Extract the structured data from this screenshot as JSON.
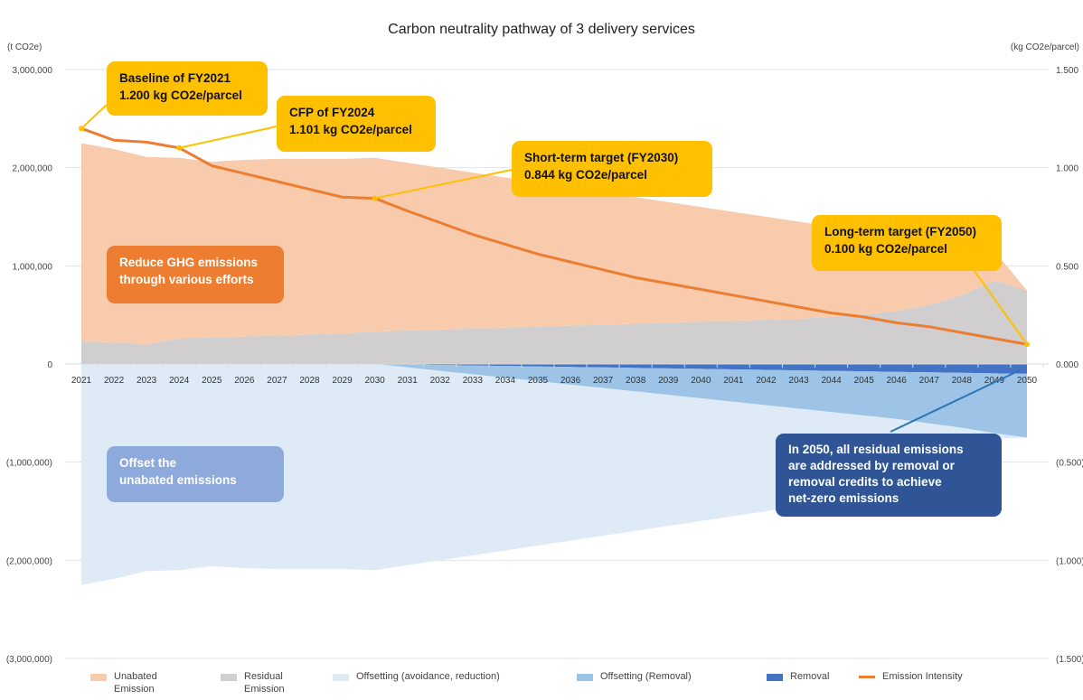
{
  "chart_data": {
    "type": "area",
    "title": "Carbon neutrality pathway of 3 delivery services",
    "ylabel_left": "(t CO2e)",
    "ylabel_right": "(kg CO2e/parcel)",
    "ylim_left": [
      -3000000,
      3000000
    ],
    "ylim_right": [
      -1.5,
      1.5
    ],
    "yticks_left": [
      "3,000,000",
      "2,000,000",
      "1,000,000",
      "0",
      "(1,000,000)",
      "(2,000,000)",
      "(3,000,000)"
    ],
    "yticks_right": [
      "1.500",
      "1.000",
      "0.500",
      "0.000",
      "(0.500)",
      "(1.000)",
      "(1.500)"
    ],
    "grid": true,
    "legend_position": "bottom",
    "x": [
      2021,
      2022,
      2023,
      2024,
      2025,
      2026,
      2027,
      2028,
      2029,
      2030,
      2031,
      2032,
      2033,
      2034,
      2035,
      2036,
      2037,
      2038,
      2039,
      2040,
      2041,
      2042,
      2043,
      2044,
      2045,
      2046,
      2047,
      2048,
      2049,
      2050
    ],
    "series": [
      {
        "name": "Unabated Emission",
        "color": "#F8CBAD",
        "stack": "positive",
        "values": [
          2020000,
          1970000,
          1910000,
          1840000,
          1790000,
          1800000,
          1800000,
          1790000,
          1780000,
          1770000,
          1710000,
          1650000,
          1590000,
          1530000,
          1470000,
          1410000,
          1350000,
          1290000,
          1230000,
          1170000,
          1110000,
          1050000,
          990000,
          920000,
          850000,
          760000,
          650000,
          500000,
          300000,
          0
        ]
      },
      {
        "name": "Residual Emission",
        "color": "#D0CECE",
        "stack": "positive",
        "values": [
          230000,
          220000,
          200000,
          260000,
          270000,
          280000,
          290000,
          300000,
          310000,
          330000,
          340000,
          350000,
          360000,
          370000,
          380000,
          390000,
          400000,
          410000,
          420000,
          430000,
          440000,
          450000,
          460000,
          480000,
          500000,
          540000,
          600000,
          700000,
          850000,
          750000
        ]
      },
      {
        "name": "Offsetting (avoidance, reduction)",
        "color": "#DEEBF7",
        "stack": "negative",
        "values": [
          -2250000,
          -2190000,
          -2110000,
          -2100000,
          -2060000,
          -2080000,
          -2090000,
          -2090000,
          -2090000,
          -2100000,
          -2015000,
          -1930000,
          -1845000,
          -1760000,
          -1675000,
          -1590000,
          -1505000,
          -1420000,
          -1335000,
          -1250000,
          -1165000,
          -1080000,
          -995000,
          -895000,
          -795000,
          -665000,
          -505000,
          -305000,
          -55000,
          0
        ]
      },
      {
        "name": "Offsetting (Removal)",
        "color": "#9DC3E6",
        "stack": "negative",
        "values": [
          0,
          0,
          0,
          0,
          0,
          0,
          0,
          0,
          0,
          0,
          -30000,
          -60000,
          -90000,
          -120000,
          -150000,
          -180000,
          -210000,
          -240000,
          -270000,
          -300000,
          -330000,
          -360000,
          -390000,
          -420000,
          -450000,
          -480000,
          -520000,
          -560000,
          -610000,
          -650000
        ]
      },
      {
        "name": "Removal",
        "color": "#4472C4",
        "stack": "negative",
        "values": [
          0,
          0,
          0,
          0,
          0,
          0,
          0,
          0,
          0,
          0,
          -5000,
          -10000,
          -15000,
          -20000,
          -25000,
          -30000,
          -35000,
          -40000,
          -45000,
          -50000,
          -55000,
          -60000,
          -65000,
          -70000,
          -75000,
          -80000,
          -85000,
          -90000,
          -95000,
          -100000
        ]
      },
      {
        "name": "Emission Intensity",
        "color": "#ED7D31",
        "type": "line",
        "axis": "right",
        "values": [
          1.2,
          1.14,
          1.13,
          1.101,
          1.01,
          0.97,
          0.93,
          0.89,
          0.85,
          0.844,
          0.78,
          0.72,
          0.66,
          0.61,
          0.56,
          0.52,
          0.48,
          0.44,
          0.41,
          0.38,
          0.35,
          0.32,
          0.29,
          0.26,
          0.24,
          0.21,
          0.19,
          0.16,
          0.13,
          0.1
        ]
      }
    ],
    "annotations": {
      "baseline": [
        "Baseline of FY2021",
        "1.200 kg CO2e/parcel"
      ],
      "cfp": [
        "CFP of FY2024",
        "1.101 kg CO2e/parcel"
      ],
      "short": [
        "Short-term target (FY2030)",
        "0.844 kg CO2e/parcel"
      ],
      "long": [
        "Long-term target (FY2050)",
        "0.100 kg CO2e/parcel"
      ],
      "reduce": [
        "Reduce GHG emissions",
        "through various efforts"
      ],
      "offset": [
        "Offset the",
        "unabated emissions"
      ],
      "netzero": [
        "In 2050, all residual emissions",
        "are addressed by removal or",
        "removal credits to achieve",
        "net-zero emissions"
      ]
    },
    "legend": [
      {
        "label": [
          "Unabated",
          "Emission"
        ],
        "color": "#F8CBAD"
      },
      {
        "label": [
          "Residual",
          "Emission"
        ],
        "color": "#D0CECE"
      },
      {
        "label": [
          "Offsetting (avoidance, reduction)"
        ],
        "color": "#DEEBF7"
      },
      {
        "label": [
          "Offsetting (Removal)"
        ],
        "color": "#9DC3E6"
      },
      {
        "label": [
          "Removal"
        ],
        "color": "#4472C4"
      },
      {
        "label": [
          "Emission Intensity"
        ],
        "color": "#ED7D31"
      }
    ]
  }
}
